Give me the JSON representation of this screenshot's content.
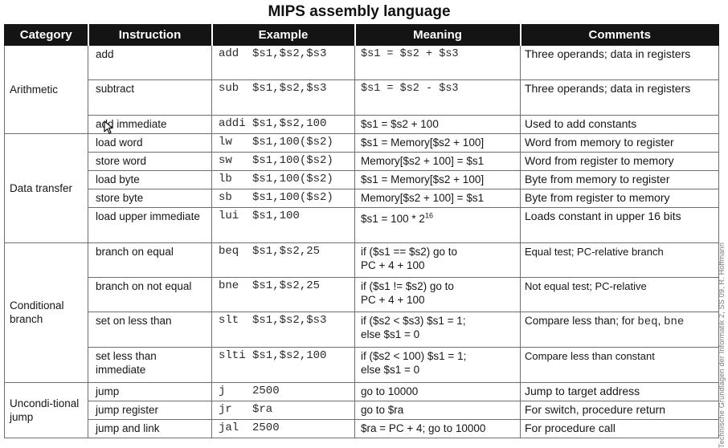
{
  "title": "MIPS assembly language",
  "headers": [
    "Category",
    "Instruction",
    "Example",
    "Meaning",
    "Comments"
  ],
  "categories": {
    "arithmetic": "Arithmetic",
    "data_transfer": "Data transfer",
    "conditional": "Conditional branch",
    "unconditional": "Uncondi-tional jump"
  },
  "rows": {
    "add": {
      "instruction": "add",
      "example": "add  $s1,$s2,$s3",
      "meaning": "$s1 = $s2 + $s3",
      "comment": "Three operands; data in registers"
    },
    "sub": {
      "instruction": "subtract",
      "example": "sub  $s1,$s2,$s3",
      "meaning": "$s1 = $s2 - $s3",
      "comment": "Three operands; data in registers"
    },
    "addi": {
      "instruction": "add immediate",
      "example": "addi $s1,$s2,100",
      "meaning": "$s1 = $s2 + 100",
      "comment": "Used to add constants"
    },
    "lw": {
      "instruction": "load word",
      "example": "lw   $s1,100($s2)",
      "meaning": "$s1 = Memory[$s2 + 100]",
      "comment": "Word from memory to register"
    },
    "sw": {
      "instruction": "store word",
      "example": "sw   $s1,100($s2)",
      "meaning": "Memory[$s2 + 100] = $s1",
      "comment": "Word from register to memory"
    },
    "lb": {
      "instruction": "load byte",
      "example": "lb   $s1,100($s2)",
      "meaning": "$s1 = Memory[$s2 + 100]",
      "comment": "Byte from memory to register"
    },
    "sb": {
      "instruction": "store byte",
      "example": "sb   $s1,100($s2)",
      "meaning": "Memory[$s2 + 100] = $s1",
      "comment": "Byte from register to memory"
    },
    "lui": {
      "instruction": "load upper immediate",
      "example": "lui  $s1,100",
      "meaning_base": "$s1 = 100 * 2",
      "meaning_exp": "16",
      "comment": "Loads constant in upper 16 bits"
    },
    "beq": {
      "instruction": "branch on equal",
      "example": "beq  $s1,$s2,25",
      "meaning_line1": "if ($s1 == $s2) go to",
      "meaning_line2": "PC + 4 + 100",
      "comment": "Equal test; PC-relative branch"
    },
    "bne": {
      "instruction": "branch on not equal",
      "example": "bne  $s1,$s2,25",
      "meaning_line1": "if ($s1 != $s2) go to",
      "meaning_line2": "PC + 4 + 100",
      "comment": "Not equal test; PC-relative"
    },
    "slt": {
      "instruction": "set on less than",
      "example": "slt  $s1,$s2,$s3",
      "meaning_line1": "if ($s2 < $s3) $s1 = 1;",
      "meaning_line2": "else $s1 = 0",
      "comment_prefix": "Compare less than; for ",
      "comment_code1": "beq",
      "comment_sep": ", ",
      "comment_code2": "bne"
    },
    "slti": {
      "instruction": "set less than immediate",
      "example": "slti $s1,$s2,100",
      "meaning_line1": "if ($s2 < 100) $s1 = 1;",
      "meaning_line2": "else $s1 = 0",
      "comment": "Compare less than constant"
    },
    "j": {
      "instruction": "jump",
      "example": "j    2500",
      "meaning": "go to 10000",
      "comment": "Jump to target address"
    },
    "jr": {
      "instruction": "jump register",
      "example": "jr   $ra",
      "meaning": "go to $ra",
      "comment": "For switch, procedure return"
    },
    "jal": {
      "instruction": "jump and link",
      "example": "jal  2500",
      "meaning": "$ra = PC + 4; go to 10000",
      "comment": "For procedure call"
    }
  },
  "side_text": "Technische Grundlagen der Informatik 2, SS 09, R. Hoffmann",
  "icons": {
    "cursor": "mouse-cursor-icon"
  }
}
